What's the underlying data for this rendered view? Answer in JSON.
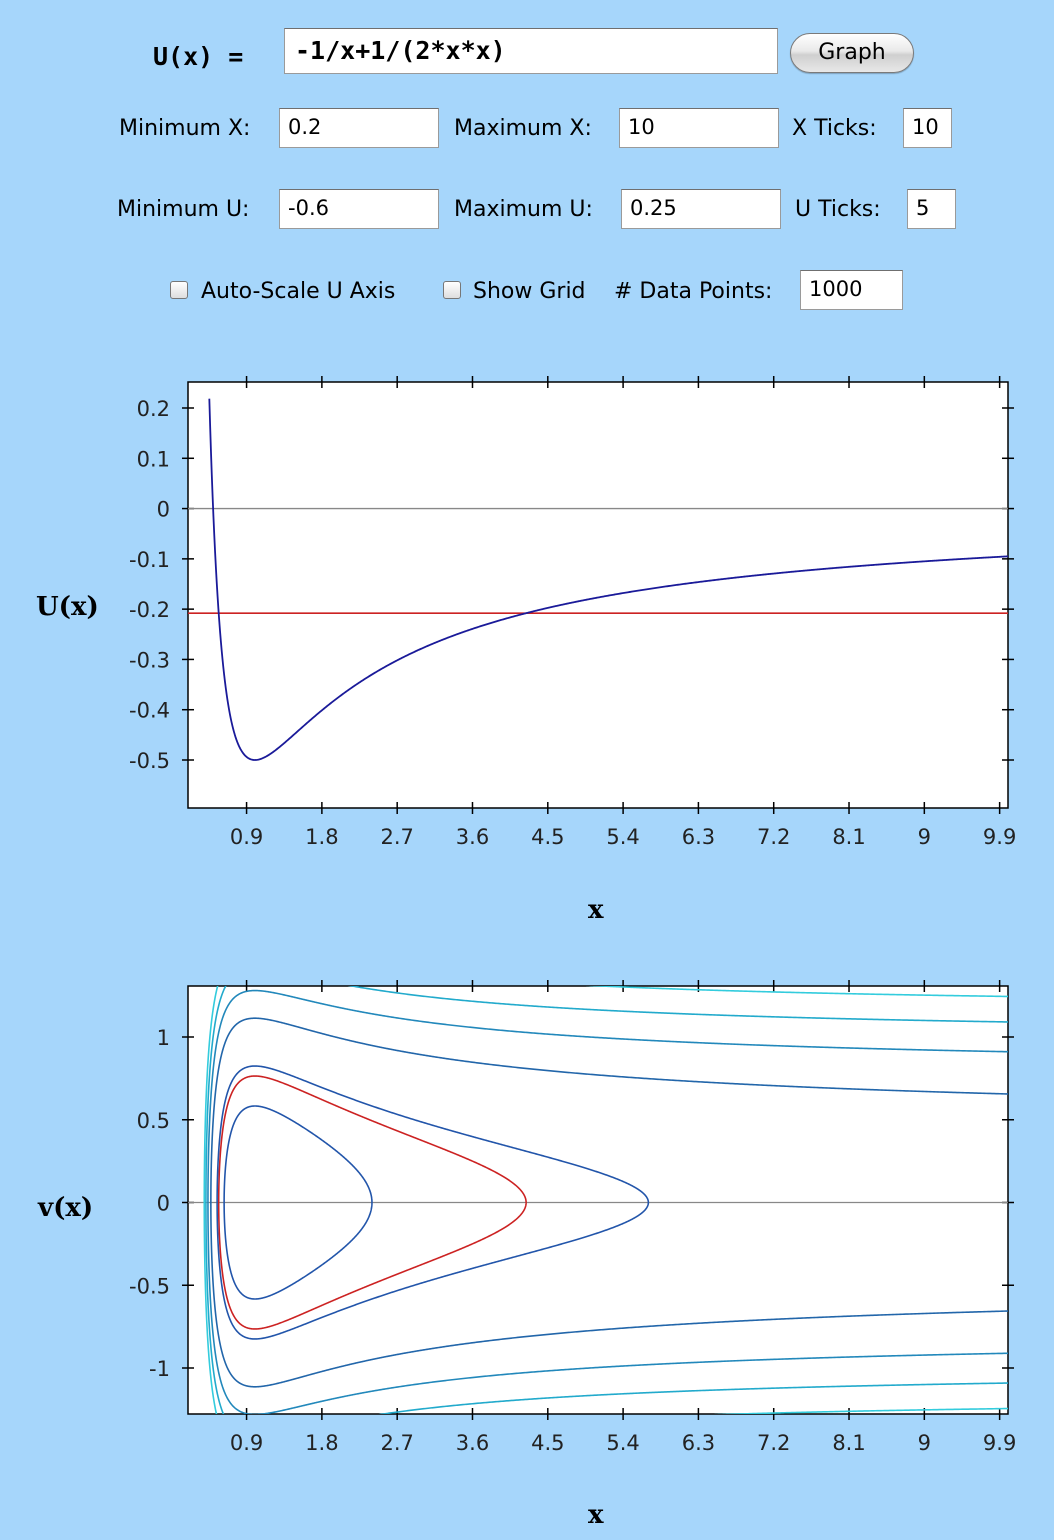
{
  "formula": {
    "label": "U(x)  =",
    "value": "-1/x+1/(2*x*x)"
  },
  "graph_button": "Graph",
  "settings": {
    "min_x_label": "Minimum X:",
    "min_x": "0.2",
    "max_x_label": "Maximum X:",
    "max_x": "10",
    "x_ticks_label": "X Ticks:",
    "x_ticks": "10",
    "min_u_label": "Minimum U:",
    "min_u": "-0.6",
    "max_u_label": "Maximum U:",
    "max_u": "0.25",
    "u_ticks_label": "U Ticks:",
    "u_ticks": "5",
    "autoscale_label": "Auto-Scale U Axis",
    "autoscale_checked": false,
    "show_grid_label": "Show Grid",
    "show_grid_checked": false,
    "data_points_label": "# Data Points:",
    "data_points": "1000"
  },
  "chart_data": [
    {
      "type": "line",
      "xlabel": "x",
      "ylabel": "U(x)",
      "xlim": [
        0.2,
        10
      ],
      "ylim": [
        -0.6,
        0.25
      ],
      "x_ticks": [
        "0.9",
        "1.8",
        "2.7",
        "3.6",
        "4.5",
        "5.4",
        "6.3",
        "7.2",
        "8.1",
        "9",
        "9.9"
      ],
      "y_ticks": [
        "0.2",
        "0.1",
        "0",
        "-0.1",
        "-0.2",
        "-0.3",
        "-0.4",
        "-0.5"
      ],
      "series": [
        {
          "function": "-1/x+1/(2*x*x)",
          "color": "#1a1a99"
        },
        {
          "constant": -0.208,
          "color": "#cc2222"
        }
      ],
      "zero_line_color": "#888888"
    },
    {
      "type": "line",
      "xlabel": "x",
      "ylabel": "v(x)",
      "xlim": [
        0.2,
        10
      ],
      "ylim": [
        -1.3,
        1.3
      ],
      "x_ticks": [
        "0.9",
        "1.8",
        "2.7",
        "3.6",
        "4.5",
        "5.4",
        "6.3",
        "7.2",
        "8.1",
        "9",
        "9.9"
      ],
      "y_ticks": [
        "1",
        "0.5",
        "0",
        "-0.5",
        "-1"
      ],
      "series": [
        {
          "energy": -0.33,
          "color": "#2255aa"
        },
        {
          "energy": -0.208,
          "color": "#cc2222"
        },
        {
          "energy": -0.16,
          "color": "#2255aa"
        },
        {
          "energy": 0.12,
          "color": "#2266aa"
        },
        {
          "energy": 0.32,
          "color": "#2288bb"
        },
        {
          "energy": 0.5,
          "color": "#22aacc"
        },
        {
          "energy": 0.68,
          "color": "#33ccdd"
        }
      ],
      "zero_line_color": "#888888"
    }
  ]
}
